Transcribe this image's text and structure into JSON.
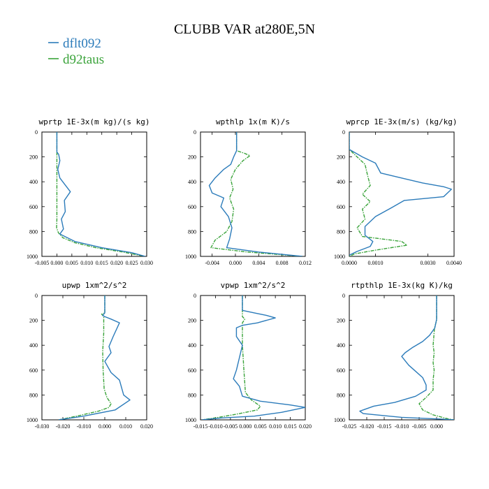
{
  "title": "CLUBB VAR at280E,5N",
  "legend": [
    {
      "name": "dflt092",
      "color": "#2b7bba"
    },
    {
      "name": "d92taus",
      "color": "#3aa33a"
    }
  ],
  "chart_data": [
    {
      "type": "line",
      "title": "wprtp  1E-3x(m kg)/(s kg)",
      "xlim": [
        -0.005,
        0.03
      ],
      "ylim": [
        1000,
        0
      ],
      "xticks": [
        "-0.005",
        "0.000",
        "0.005",
        "0.010",
        "0.015",
        "0.020",
        "0.025",
        "0.030"
      ],
      "yticks": [
        "0",
        "200",
        "400",
        "600",
        "800",
        "1000"
      ],
      "series": [
        {
          "name": "dflt092",
          "points": [
            [
              0.0,
              0
            ],
            [
              0.0,
              160
            ],
            [
              0.0006,
              180
            ],
            [
              0.001,
              230
            ],
            [
              0.0003,
              300
            ],
            [
              0.001,
              370
            ],
            [
              0.0045,
              480
            ],
            [
              0.0025,
              550
            ],
            [
              0.0028,
              640
            ],
            [
              0.0015,
              700
            ],
            [
              0.0022,
              780
            ],
            [
              0.001,
              820
            ],
            [
              0.006,
              880
            ],
            [
              0.015,
              930
            ],
            [
              0.025,
              970
            ],
            [
              0.0295,
              1000
            ]
          ]
        },
        {
          "name": "d92taus",
          "points": [
            [
              0.0,
              0
            ],
            [
              0.0,
              700
            ],
            [
              -0.0001,
              770
            ],
            [
              0.0005,
              810
            ],
            [
              0.002,
              850
            ],
            [
              0.006,
              890
            ],
            [
              0.013,
              930
            ],
            [
              0.022,
              965
            ],
            [
              0.0295,
              1000
            ]
          ]
        }
      ]
    },
    {
      "type": "line",
      "title": "wpthlp  1x(m K)/s",
      "xlim": [
        -0.006,
        0.012
      ],
      "ylim": [
        1000,
        0
      ],
      "xticks": [
        "-0.004",
        "0.000",
        "0.004",
        "0.008",
        "0.012"
      ],
      "yticks": [
        "0",
        "200",
        "400",
        "600",
        "800",
        "1000"
      ],
      "series": [
        {
          "name": "dflt092",
          "points": [
            [
              0.0002,
              0
            ],
            [
              0.0002,
              150
            ],
            [
              -0.0003,
              200
            ],
            [
              -0.0008,
              260
            ],
            [
              -0.002,
              300
            ],
            [
              -0.0035,
              370
            ],
            [
              -0.0045,
              430
            ],
            [
              -0.004,
              490
            ],
            [
              -0.002,
              530
            ],
            [
              -0.0025,
              600
            ],
            [
              -0.0012,
              680
            ],
            [
              -0.0006,
              770
            ],
            [
              -0.001,
              860
            ],
            [
              -0.0015,
              930
            ],
            [
              0.004,
              965
            ],
            [
              0.0115,
              1000
            ]
          ]
        },
        {
          "name": "d92taus",
          "points": [
            [
              0.0002,
              0
            ],
            [
              0.0002,
              150
            ],
            [
              0.0015,
              170
            ],
            [
              0.0025,
              190
            ],
            [
              0.0013,
              230
            ],
            [
              0.0,
              300
            ],
            [
              -0.0008,
              380
            ],
            [
              -0.0004,
              460
            ],
            [
              -0.001,
              530
            ],
            [
              -0.0003,
              620
            ],
            [
              -0.0006,
              720
            ],
            [
              -0.0015,
              800
            ],
            [
              -0.0035,
              870
            ],
            [
              -0.0042,
              930
            ],
            [
              0.002,
              965
            ],
            [
              0.0115,
              1000
            ]
          ]
        }
      ]
    },
    {
      "type": "line",
      "title": "wprcp  1E-3x(m/s) (kg/kg)",
      "xlim": [
        0.0,
        0.004
      ],
      "ylim": [
        1000,
        0
      ],
      "xticks": [
        "0.0000",
        "0.0010",
        "0.0030",
        "0.0040"
      ],
      "yticks": [
        "0",
        "200",
        "400",
        "600",
        "800",
        "1000"
      ],
      "series": [
        {
          "name": "dflt092",
          "points": [
            [
              0.0,
              0
            ],
            [
              0.0,
              140
            ],
            [
              0.0005,
              200
            ],
            [
              0.001,
              250
            ],
            [
              0.0012,
              330
            ],
            [
              0.0028,
              410
            ],
            [
              0.0036,
              440
            ],
            [
              0.0039,
              460
            ],
            [
              0.0036,
              520
            ],
            [
              0.0021,
              550
            ],
            [
              0.0016,
              610
            ],
            [
              0.001,
              680
            ],
            [
              0.0006,
              760
            ],
            [
              0.0006,
              830
            ],
            [
              0.0009,
              880
            ],
            [
              0.0008,
              920
            ],
            [
              0.0003,
              960
            ],
            [
              0.0,
              990
            ]
          ]
        },
        {
          "name": "d92taus",
          "points": [
            [
              0.0,
              0
            ],
            [
              0.0,
              140
            ],
            [
              0.0003,
              200
            ],
            [
              0.0006,
              260
            ],
            [
              0.0007,
              350
            ],
            [
              0.0008,
              430
            ],
            [
              0.0005,
              500
            ],
            [
              0.0008,
              560
            ],
            [
              0.0005,
              620
            ],
            [
              0.0006,
              700
            ],
            [
              0.0003,
              770
            ],
            [
              0.0005,
              840
            ],
            [
              0.002,
              880
            ],
            [
              0.0022,
              910
            ],
            [
              0.001,
              950
            ],
            [
              0.0002,
              980
            ],
            [
              0.0,
              1000
            ]
          ]
        }
      ]
    },
    {
      "type": "line",
      "title": "upwp  1xm^2/s^2",
      "xlim": [
        -0.03,
        0.02
      ],
      "ylim": [
        1000,
        0
      ],
      "xticks": [
        "-0.030",
        "-0.020",
        "-0.010",
        "0.000",
        "0.010",
        "0.020"
      ],
      "yticks": [
        "0",
        "200",
        "400",
        "600",
        "800",
        "1000"
      ],
      "series": [
        {
          "name": "dflt092",
          "points": [
            [
              0.0,
              0
            ],
            [
              0.0,
              140
            ],
            [
              -0.001,
              160
            ],
            [
              0.0,
              170
            ],
            [
              0.003,
              190
            ],
            [
              0.007,
              220
            ],
            [
              0.004,
              330
            ],
            [
              0.002,
              410
            ],
            [
              0.003,
              460
            ],
            [
              0.0,
              530
            ],
            [
              0.003,
              620
            ],
            [
              0.007,
              680
            ],
            [
              0.009,
              800
            ],
            [
              0.012,
              840
            ],
            [
              0.005,
              920
            ],
            [
              -0.01,
              970
            ],
            [
              -0.022,
              1000
            ]
          ]
        },
        {
          "name": "d92taus",
          "points": [
            [
              0.0,
              0
            ],
            [
              0.0,
              140
            ],
            [
              -0.0015,
              150
            ],
            [
              -0.0005,
              170
            ],
            [
              -0.0005,
              300
            ],
            [
              -0.001,
              450
            ],
            [
              -0.0008,
              600
            ],
            [
              -0.0003,
              750
            ],
            [
              0.001,
              820
            ],
            [
              0.003,
              870
            ],
            [
              0.002,
              900
            ],
            [
              -0.003,
              930
            ],
            [
              -0.012,
              965
            ],
            [
              -0.022,
              1000
            ]
          ]
        }
      ]
    },
    {
      "type": "line",
      "title": "vpwp  1xm^2/s^2",
      "xlim": [
        -0.015,
        0.02
      ],
      "ylim": [
        1000,
        0
      ],
      "xticks": [
        "-0.015",
        "-0.010",
        "-0.005",
        "0.000",
        "0.005",
        "0.010",
        "0.015",
        "0.020"
      ],
      "yticks": [
        "0",
        "200",
        "400",
        "600",
        "800",
        "1000"
      ],
      "series": [
        {
          "name": "dflt092",
          "points": [
            [
              -0.001,
              0
            ],
            [
              -0.001,
              120
            ],
            [
              0.003,
              140
            ],
            [
              0.007,
              160
            ],
            [
              0.01,
              180
            ],
            [
              0.004,
              220
            ],
            [
              -0.001,
              240
            ],
            [
              -0.003,
              260
            ],
            [
              -0.003,
              330
            ],
            [
              -0.001,
              400
            ],
            [
              -0.002,
              500
            ],
            [
              -0.003,
              600
            ],
            [
              -0.004,
              670
            ],
            [
              -0.002,
              730
            ],
            [
              -0.001,
              810
            ],
            [
              0.005,
              850
            ],
            [
              0.015,
              880
            ],
            [
              0.02,
              900
            ],
            [
              0.012,
              940
            ],
            [
              0.003,
              970
            ],
            [
              -0.008,
              985
            ],
            [
              -0.0145,
              1000
            ]
          ]
        },
        {
          "name": "d92taus",
          "points": [
            [
              -0.001,
              0
            ],
            [
              -0.001,
              170
            ],
            [
              -0.0002,
              190
            ],
            [
              -0.001,
              220
            ],
            [
              -0.001,
              400
            ],
            [
              -0.0005,
              600
            ],
            [
              0.0,
              780
            ],
            [
              0.002,
              840
            ],
            [
              0.005,
              890
            ],
            [
              0.004,
              920
            ],
            [
              -0.002,
              950
            ],
            [
              -0.009,
              980
            ],
            [
              -0.0145,
              1000
            ]
          ]
        }
      ]
    },
    {
      "type": "line",
      "title": "rtpthlp  1E-3x(kg K)/kg",
      "xlim": [
        -0.025,
        0.005
      ],
      "ylim": [
        1000,
        0
      ],
      "xticks": [
        "-0.025",
        "-0.020",
        "-0.015",
        "-0.010",
        "-0.005",
        "0.000"
      ],
      "yticks": [
        "0",
        "200",
        "400",
        "600",
        "800",
        "1000"
      ],
      "series": [
        {
          "name": "dflt092",
          "points": [
            [
              0.0,
              0
            ],
            [
              0.0,
              190
            ],
            [
              -0.0005,
              260
            ],
            [
              -0.002,
              320
            ],
            [
              -0.004,
              370
            ],
            [
              -0.007,
              420
            ],
            [
              -0.009,
              460
            ],
            [
              -0.01,
              490
            ],
            [
              -0.008,
              560
            ],
            [
              -0.006,
              610
            ],
            [
              -0.004,
              660
            ],
            [
              -0.003,
              720
            ],
            [
              -0.003,
              760
            ],
            [
              -0.006,
              810
            ],
            [
              -0.012,
              860
            ],
            [
              -0.018,
              890
            ],
            [
              -0.022,
              930
            ],
            [
              -0.021,
              950
            ],
            [
              -0.01,
              980
            ],
            [
              0.002,
              995
            ],
            [
              0.005,
              1000
            ]
          ]
        },
        {
          "name": "d92taus",
          "points": [
            [
              0.0,
              0
            ],
            [
              0.0,
              200
            ],
            [
              -0.0006,
              260
            ],
            [
              -0.0008,
              330
            ],
            [
              -0.001,
              400
            ],
            [
              -0.0007,
              460
            ],
            [
              -0.001,
              540
            ],
            [
              -0.0007,
              600
            ],
            [
              -0.001,
              680
            ],
            [
              -0.001,
              760
            ],
            [
              -0.003,
              820
            ],
            [
              -0.005,
              870
            ],
            [
              -0.004,
              920
            ],
            [
              -0.001,
              960
            ],
            [
              0.003,
              990
            ],
            [
              0.005,
              1000
            ]
          ]
        }
      ]
    }
  ]
}
